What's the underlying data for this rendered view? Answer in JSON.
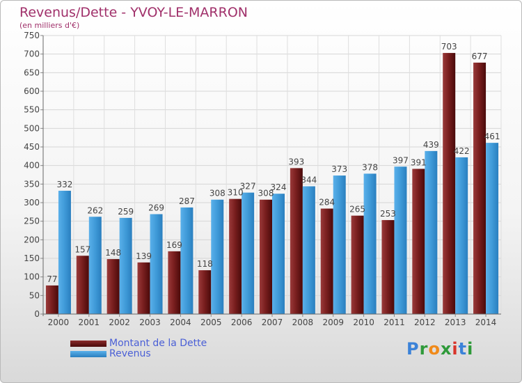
{
  "chart_data": {
    "type": "bar",
    "title": "Revenus/Dette - YVOY-LE-MARRON",
    "subtitle": "(en milliers d'€)",
    "categories": [
      "2000",
      "2001",
      "2002",
      "2003",
      "2004",
      "2005",
      "2006",
      "2007",
      "2008",
      "2009",
      "2010",
      "2011",
      "2012",
      "2013",
      "2014"
    ],
    "series": [
      {
        "name": "Montant de la Dette",
        "color": "#7a1f1f",
        "values": [
          77,
          157,
          148,
          139,
          169,
          118,
          310,
          308,
          393,
          284,
          265,
          253,
          391,
          703,
          677
        ]
      },
      {
        "name": "Revenus",
        "color": "#3f9ad8",
        "values": [
          332,
          262,
          259,
          269,
          287,
          308,
          327,
          324,
          344,
          373,
          378,
          397,
          439,
          422,
          461
        ]
      }
    ],
    "ylim": [
      0,
      750
    ],
    "yticks": [
      0,
      50,
      100,
      150,
      200,
      250,
      300,
      350,
      400,
      450,
      500,
      550,
      600,
      650,
      700,
      750
    ],
    "grid": true,
    "legend_position": "bottom-left"
  },
  "logo": {
    "letters": [
      "P",
      "r",
      "o",
      "x",
      "i",
      "t",
      "i"
    ],
    "colors": [
      "#3b82d8",
      "#2f9a3a",
      "#f08a1a",
      "#2f9a3a",
      "#d8342a",
      "#3b82d8",
      "#2f9a3a"
    ]
  }
}
